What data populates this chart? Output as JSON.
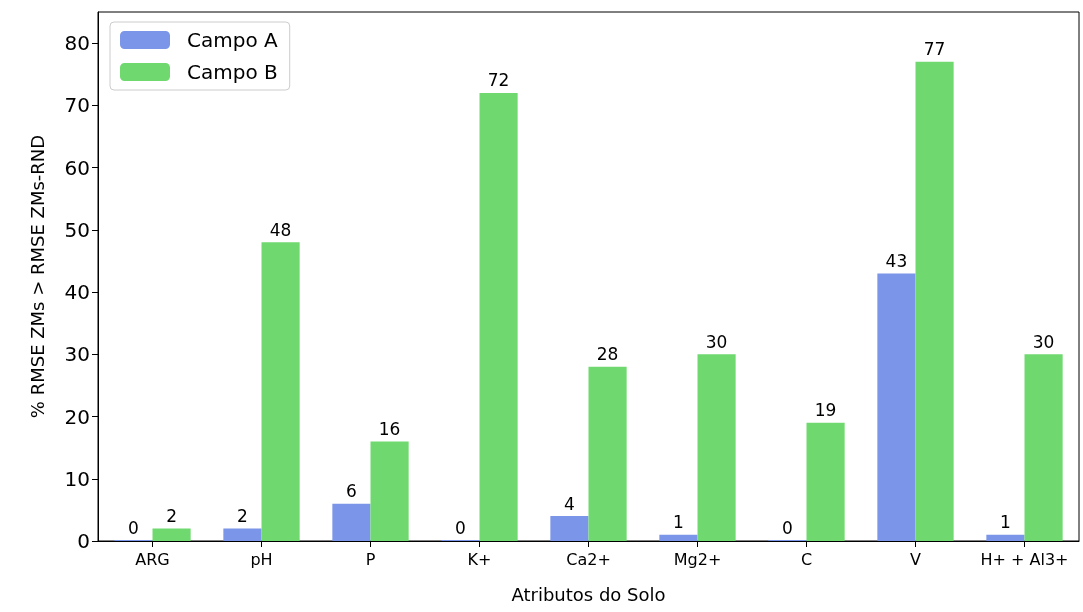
{
  "chart_data": {
    "type": "bar",
    "xlabel": "Atributos do Solo",
    "ylabel": "% RMSE ZMs > RMSE ZMs-RND",
    "categories": [
      "ARG",
      "pH",
      "P",
      "K+",
      "Ca2+",
      "Mg2+",
      "C",
      "V",
      "H+ + Al3+"
    ],
    "series": [
      {
        "name": "Campo A",
        "color": "#7b96e8",
        "values": [
          0,
          2,
          6,
          0,
          4,
          1,
          0,
          43,
          1
        ]
      },
      {
        "name": "Campo B",
        "color": "#6fd96f",
        "values": [
          2,
          48,
          16,
          72,
          28,
          30,
          19,
          77,
          30
        ]
      }
    ],
    "ylim": [
      0,
      85
    ],
    "yticks": [
      0,
      10,
      20,
      30,
      40,
      50,
      60,
      70,
      80
    ],
    "grid": false,
    "legend": "top left",
    "data_labels": true
  }
}
